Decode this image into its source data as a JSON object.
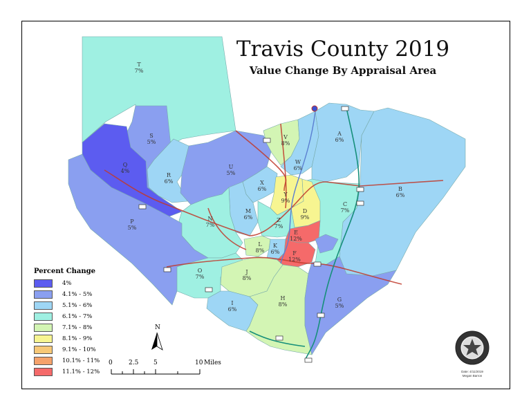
{
  "title": "Travis County 2019",
  "subtitle": "Value Change By Appraisal Area",
  "legend": {
    "title": "Percent Change",
    "items": [
      {
        "label": "4%",
        "color": "#5c5cf0"
      },
      {
        "label": "4.1% - 5%",
        "color": "#8a9ff0"
      },
      {
        "label": "5.1% - 6%",
        "color": "#9ed6f5"
      },
      {
        "label": "6.1% - 7%",
        "color": "#9ff0e2"
      },
      {
        "label": "7.1% - 8%",
        "color": "#d3f5b4"
      },
      {
        "label": "8.1% - 9%",
        "color": "#f7f591"
      },
      {
        "label": "9.1% - 10%",
        "color": "#f7c877"
      },
      {
        "label": "10.1% - 11%",
        "color": "#f5a26b"
      },
      {
        "label": "11.1% - 12%",
        "color": "#f56a6a"
      }
    ]
  },
  "areas": [
    {
      "code": "T",
      "value": "7%"
    },
    {
      "code": "S",
      "value": "5%"
    },
    {
      "code": "Q",
      "value": "4%"
    },
    {
      "code": "R",
      "value": "6%"
    },
    {
      "code": "U",
      "value": "5%"
    },
    {
      "code": "V",
      "value": "8%"
    },
    {
      "code": "W",
      "value": "6%"
    },
    {
      "code": "A",
      "value": "6%"
    },
    {
      "code": "X",
      "value": "6%"
    },
    {
      "code": "Y",
      "value": "9%"
    },
    {
      "code": "B",
      "value": "6%"
    },
    {
      "code": "M",
      "value": "6%"
    },
    {
      "code": "D",
      "value": "9%"
    },
    {
      "code": "C",
      "value": "7%"
    },
    {
      "code": "P",
      "value": "5%"
    },
    {
      "code": "N",
      "value": "7%"
    },
    {
      "code": "Z",
      "value": "7%"
    },
    {
      "code": "E",
      "value": "12%"
    },
    {
      "code": "L",
      "value": "8%"
    },
    {
      "code": "K",
      "value": "6%"
    },
    {
      "code": "F",
      "value": "12%"
    },
    {
      "code": "O",
      "value": "7%"
    },
    {
      "code": "J",
      "value": "8%"
    },
    {
      "code": "I",
      "value": "6%"
    },
    {
      "code": "H",
      "value": "8%"
    },
    {
      "code": "G",
      "value": "5%"
    }
  ],
  "north_label": "N",
  "scale": {
    "ticks": [
      "0",
      "2.5",
      "5",
      "10"
    ],
    "unit": "Miles"
  },
  "credit": {
    "line1": "Date: 4/11/2019",
    "line2": "Megan Barron"
  }
}
